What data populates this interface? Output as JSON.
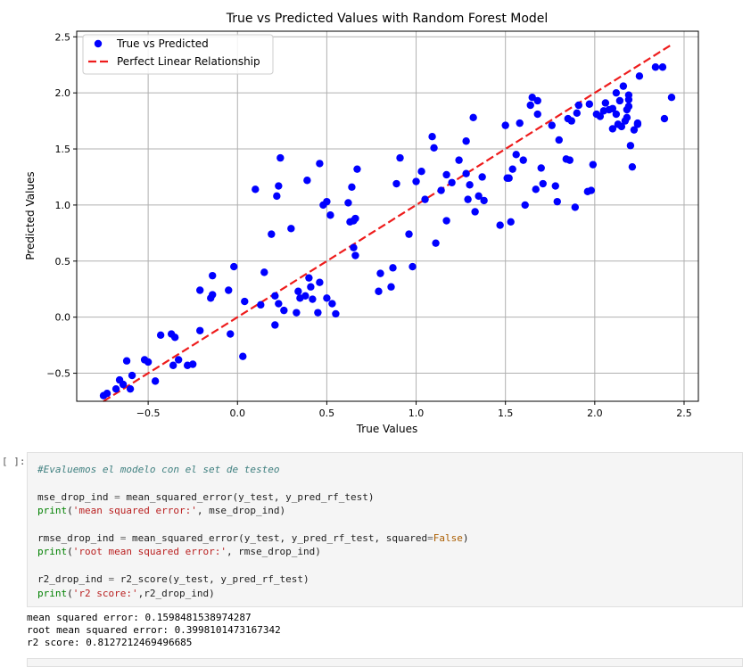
{
  "chart_data": {
    "type": "scatter",
    "title": "True vs Predicted Values with Random Forest Model",
    "xlabel": "True Values",
    "ylabel": "Predicted Values",
    "xlim": [
      -0.9,
      2.58
    ],
    "ylim": [
      -0.75,
      2.55
    ],
    "xticks": [
      -0.5,
      0.0,
      0.5,
      1.0,
      1.5,
      2.0,
      2.5
    ],
    "xtick_labels": [
      "−0.5",
      "0.0",
      "0.5",
      "1.0",
      "1.5",
      "2.0",
      "2.5"
    ],
    "yticks": [
      -0.5,
      0.0,
      0.5,
      1.0,
      1.5,
      2.0,
      2.5
    ],
    "ytick_labels": [
      "−0.5",
      "0.0",
      "0.5",
      "1.0",
      "1.5",
      "2.0",
      "2.5"
    ],
    "grid": true,
    "legend_position": "top-left",
    "series": [
      {
        "name": "True vs Predicted",
        "kind": "scatter",
        "color": "#0000ff",
        "points": [
          [
            -0.75,
            -0.7
          ],
          [
            -0.73,
            -0.68
          ],
          [
            -0.68,
            -0.64
          ],
          [
            -0.66,
            -0.56
          ],
          [
            -0.64,
            -0.6
          ],
          [
            -0.62,
            -0.39
          ],
          [
            -0.6,
            -0.64
          ],
          [
            -0.59,
            -0.52
          ],
          [
            -0.52,
            -0.38
          ],
          [
            -0.5,
            -0.4
          ],
          [
            -0.46,
            -0.57
          ],
          [
            -0.43,
            -0.16
          ],
          [
            -0.37,
            -0.15
          ],
          [
            -0.36,
            -0.43
          ],
          [
            -0.35,
            -0.18
          ],
          [
            -0.33,
            -0.38
          ],
          [
            -0.28,
            -0.43
          ],
          [
            -0.25,
            -0.42
          ],
          [
            -0.21,
            0.24
          ],
          [
            -0.21,
            -0.12
          ],
          [
            -0.15,
            0.17
          ],
          [
            -0.14,
            0.2
          ],
          [
            -0.14,
            0.37
          ],
          [
            -0.05,
            0.24
          ],
          [
            -0.04,
            -0.15
          ],
          [
            -0.02,
            0.45
          ],
          [
            0.03,
            -0.35
          ],
          [
            0.04,
            0.14
          ],
          [
            0.1,
            1.14
          ],
          [
            0.13,
            0.11
          ],
          [
            0.15,
            0.4
          ],
          [
            0.19,
            0.74
          ],
          [
            0.21,
            0.19
          ],
          [
            0.21,
            -0.07
          ],
          [
            0.22,
            1.08
          ],
          [
            0.23,
            0.12
          ],
          [
            0.23,
            1.17
          ],
          [
            0.24,
            1.42
          ],
          [
            0.26,
            0.06
          ],
          [
            0.3,
            0.79
          ],
          [
            0.33,
            0.04
          ],
          [
            0.34,
            0.23
          ],
          [
            0.35,
            0.17
          ],
          [
            0.38,
            0.19
          ],
          [
            0.39,
            1.22
          ],
          [
            0.4,
            0.35
          ],
          [
            0.41,
            0.27
          ],
          [
            0.42,
            0.16
          ],
          [
            0.45,
            0.04
          ],
          [
            0.46,
            1.37
          ],
          [
            0.46,
            0.31
          ],
          [
            0.48,
            1.0
          ],
          [
            0.5,
            1.03
          ],
          [
            0.5,
            0.17
          ],
          [
            0.52,
            0.91
          ],
          [
            0.53,
            0.12
          ],
          [
            0.55,
            0.03
          ],
          [
            0.62,
            1.02
          ],
          [
            0.63,
            0.85
          ],
          [
            0.64,
            1.16
          ],
          [
            0.65,
            0.62
          ],
          [
            0.65,
            0.86
          ],
          [
            0.66,
            0.88
          ],
          [
            0.66,
            0.55
          ],
          [
            0.67,
            1.32
          ],
          [
            0.79,
            0.23
          ],
          [
            0.8,
            0.39
          ],
          [
            0.86,
            0.27
          ],
          [
            0.87,
            0.44
          ],
          [
            0.89,
            1.19
          ],
          [
            0.91,
            1.42
          ],
          [
            0.96,
            0.74
          ],
          [
            0.98,
            0.45
          ],
          [
            1.0,
            1.21
          ],
          [
            1.03,
            1.3
          ],
          [
            1.05,
            1.05
          ],
          [
            1.09,
            1.61
          ],
          [
            1.1,
            1.51
          ],
          [
            1.11,
            0.66
          ],
          [
            1.14,
            1.13
          ],
          [
            1.17,
            1.27
          ],
          [
            1.17,
            0.86
          ],
          [
            1.2,
            1.2
          ],
          [
            1.24,
            1.4
          ],
          [
            1.28,
            1.57
          ],
          [
            1.28,
            1.28
          ],
          [
            1.29,
            1.05
          ],
          [
            1.3,
            1.18
          ],
          [
            1.32,
            1.78
          ],
          [
            1.33,
            0.94
          ],
          [
            1.35,
            1.08
          ],
          [
            1.37,
            1.25
          ],
          [
            1.38,
            1.04
          ],
          [
            1.47,
            0.82
          ],
          [
            1.5,
            1.71
          ],
          [
            1.51,
            1.24
          ],
          [
            1.52,
            1.24
          ],
          [
            1.53,
            0.85
          ],
          [
            1.54,
            1.32
          ],
          [
            1.56,
            1.45
          ],
          [
            1.58,
            1.73
          ],
          [
            1.6,
            1.4
          ],
          [
            1.61,
            1.0
          ],
          [
            1.64,
            1.89
          ],
          [
            1.65,
            1.96
          ],
          [
            1.67,
            1.14
          ],
          [
            1.68,
            1.81
          ],
          [
            1.68,
            1.93
          ],
          [
            1.7,
            1.33
          ],
          [
            1.71,
            1.19
          ],
          [
            1.76,
            1.71
          ],
          [
            1.78,
            1.17
          ],
          [
            1.79,
            1.03
          ],
          [
            1.8,
            1.58
          ],
          [
            1.84,
            1.41
          ],
          [
            1.85,
            1.77
          ],
          [
            1.86,
            1.4
          ],
          [
            1.87,
            1.75
          ],
          [
            1.89,
            0.98
          ],
          [
            1.9,
            1.82
          ],
          [
            1.91,
            1.89
          ],
          [
            1.96,
            1.12
          ],
          [
            1.97,
            1.9
          ],
          [
            1.98,
            1.13
          ],
          [
            1.99,
            1.36
          ],
          [
            2.01,
            1.81
          ],
          [
            2.03,
            1.79
          ],
          [
            2.05,
            1.84
          ],
          [
            2.06,
            1.91
          ],
          [
            2.08,
            1.85
          ],
          [
            2.1,
            1.68
          ],
          [
            2.1,
            1.86
          ],
          [
            2.12,
            2.0
          ],
          [
            2.12,
            1.81
          ],
          [
            2.13,
            1.72
          ],
          [
            2.14,
            1.93
          ],
          [
            2.15,
            1.7
          ],
          [
            2.16,
            2.06
          ],
          [
            2.17,
            1.75
          ],
          [
            2.18,
            1.78
          ],
          [
            2.18,
            1.85
          ],
          [
            2.19,
            1.98
          ],
          [
            2.19,
            1.94
          ],
          [
            2.19,
            1.88
          ],
          [
            2.2,
            1.53
          ],
          [
            2.21,
            1.34
          ],
          [
            2.22,
            1.67
          ],
          [
            2.24,
            1.73
          ],
          [
            2.24,
            1.72
          ],
          [
            2.25,
            2.15
          ],
          [
            2.34,
            2.23
          ],
          [
            2.38,
            2.23
          ],
          [
            2.39,
            1.77
          ],
          [
            2.43,
            1.96
          ]
        ]
      },
      {
        "name": "Perfect Linear Relationship",
        "kind": "dashed-line",
        "color": "#ee1c1c",
        "x": [
          -0.75,
          2.43
        ],
        "y": [
          -0.75,
          2.43
        ]
      }
    ]
  },
  "notebook": {
    "cell_prompt": "[ ]:",
    "code_lines": [
      [
        {
          "t": "#Evaluemos el modelo con el set de testeo",
          "c": "cmt"
        }
      ],
      [
        {
          "t": "",
          "c": ""
        }
      ],
      [
        {
          "t": "mse_drop_ind ",
          "c": ""
        },
        {
          "t": "=",
          "c": "op"
        },
        {
          "t": " mean_squared_error(y_test, y_pred_rf_test)",
          "c": ""
        }
      ],
      [
        {
          "t": "print",
          "c": "bi"
        },
        {
          "t": "(",
          "c": ""
        },
        {
          "t": "'mean squared error:'",
          "c": "str"
        },
        {
          "t": ", mse_drop_ind)",
          "c": ""
        }
      ],
      [
        {
          "t": "",
          "c": ""
        }
      ],
      [
        {
          "t": "rmse_drop_ind ",
          "c": ""
        },
        {
          "t": "=",
          "c": "op"
        },
        {
          "t": " mean_squared_error(y_test, y_pred_rf_test, squared",
          "c": ""
        },
        {
          "t": "=",
          "c": "op"
        },
        {
          "t": "False",
          "c": "kw"
        },
        {
          "t": ")",
          "c": ""
        }
      ],
      [
        {
          "t": "print",
          "c": "bi"
        },
        {
          "t": "(",
          "c": ""
        },
        {
          "t": "'root mean squared error:'",
          "c": "str"
        },
        {
          "t": ", rmse_drop_ind)",
          "c": ""
        }
      ],
      [
        {
          "t": "",
          "c": ""
        }
      ],
      [
        {
          "t": "r2_drop_ind ",
          "c": ""
        },
        {
          "t": "=",
          "c": "op"
        },
        {
          "t": " r2_score(y_test, y_pred_rf_test)",
          "c": ""
        }
      ],
      [
        {
          "t": "print",
          "c": "bi"
        },
        {
          "t": "(",
          "c": ""
        },
        {
          "t": "'r2 score:'",
          "c": "str"
        },
        {
          "t": ",r2_drop_ind)",
          "c": ""
        }
      ]
    ],
    "output_lines": [
      "mean squared error: 0.1598481538974287",
      "root mean squared error: 0.3998101473167342",
      "r2 score: 0.8127212469496685"
    ]
  }
}
